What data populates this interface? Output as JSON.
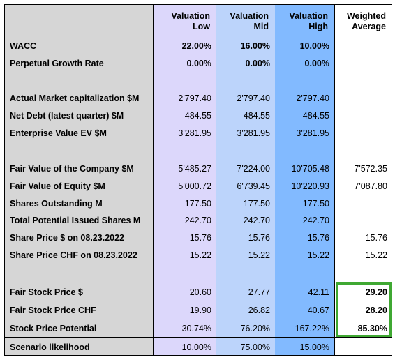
{
  "headers": {
    "low": [
      "Valuation",
      "Low"
    ],
    "mid": [
      "Valuation",
      "Mid"
    ],
    "high": [
      "Valuation",
      "High"
    ],
    "weighted": [
      "Weighted",
      "Average"
    ]
  },
  "rows": [
    {
      "label": "WACC",
      "low": "22.00%",
      "mid": "16.00%",
      "high": "10.00%",
      "weighted": "",
      "bold": true
    },
    {
      "label": "Perpetual Growth Rate",
      "low": "0.00%",
      "mid": "0.00%",
      "high": "0.00%",
      "weighted": "",
      "bold": true
    },
    {
      "label": "Actual Market capitalization $M",
      "low": "2'797.40",
      "mid": "2'797.40",
      "high": "2'797.40",
      "weighted": ""
    },
    {
      "label": "Net Debt (latest quarter) $M",
      "low": "484.55",
      "mid": "484.55",
      "high": "484.55",
      "weighted": ""
    },
    {
      "label": "Enterprise Value EV $M",
      "low": "3'281.95",
      "mid": "3'281.95",
      "high": "3'281.95",
      "weighted": ""
    },
    {
      "label": "Fair Value of the Company $M",
      "low": "5'485.27",
      "mid": "7'224.00",
      "high": "10'705.48",
      "weighted": "7'572.35"
    },
    {
      "label": "Fair Value of Equity $M",
      "low": "5'000.72",
      "mid": "6'739.45",
      "high": "10'220.93",
      "weighted": "7'087.80"
    },
    {
      "label": "Shares Outstanding M",
      "low": "177.50",
      "mid": "177.50",
      "high": "177.50",
      "weighted": ""
    },
    {
      "label": "Total Potential Issued Shares M",
      "low": "242.70",
      "mid": "242.70",
      "high": "242.70",
      "weighted": ""
    },
    {
      "label": "Share Price $ on 08.23.2022",
      "low": "15.76",
      "mid": "15.76",
      "high": "15.76",
      "weighted": "15.76"
    },
    {
      "label": "Share Price CHF on 08.23.2022",
      "low": "15.22",
      "mid": "15.22",
      "high": "15.22",
      "weighted": "15.22"
    },
    {
      "label": "Fair Stock Price $",
      "low": "20.60",
      "mid": "27.77",
      "high": "42.11",
      "weighted": "29.20"
    },
    {
      "label": "Fair Stock Price CHF",
      "low": "19.90",
      "mid": "26.82",
      "high": "40.67",
      "weighted": "28.20"
    },
    {
      "label": "Stock Price Potential",
      "low": "30.74%",
      "mid": "76.20%",
      "high": "167.22%",
      "weighted": "85.30%"
    },
    {
      "label": "Scenario likelihood",
      "low": "10.00%",
      "mid": "75.00%",
      "high": "15.00%",
      "weighted": ""
    }
  ],
  "highlight_color": "#3fa832"
}
